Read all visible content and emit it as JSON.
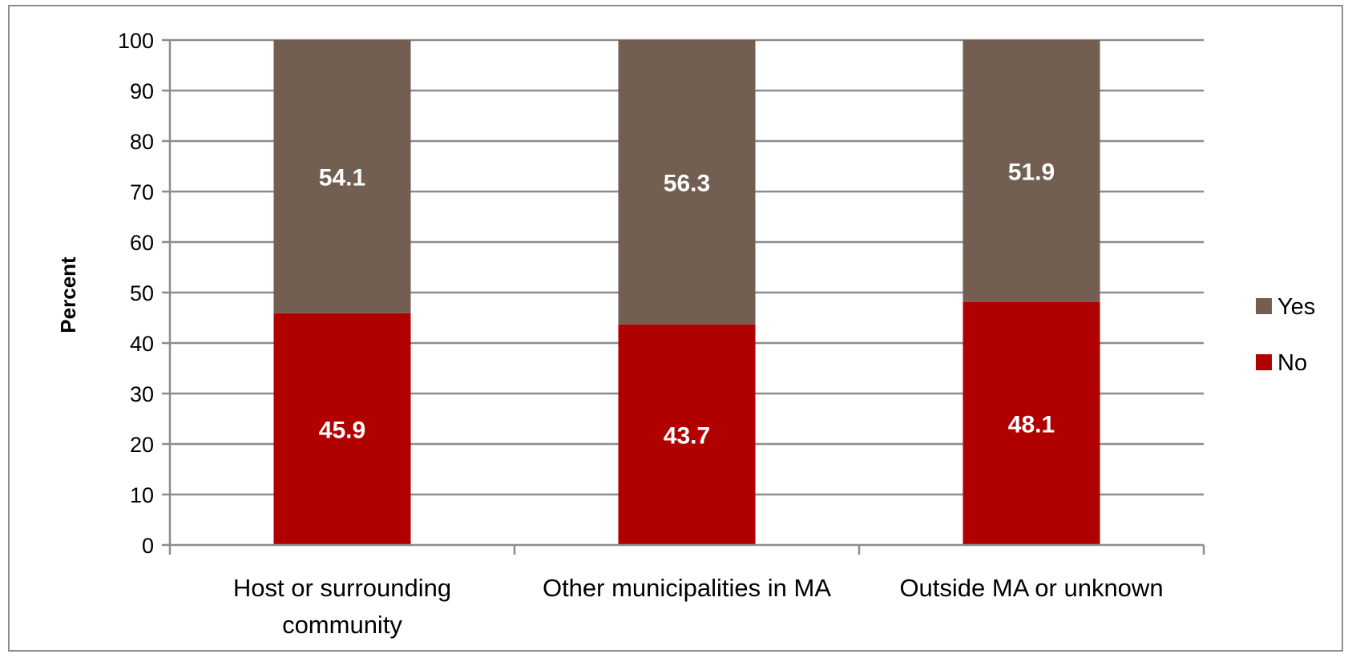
{
  "chart_data": {
    "type": "bar",
    "stacked": true,
    "categories": [
      [
        "Host or surrounding",
        "community"
      ],
      [
        "Other municipalities in MA"
      ],
      [
        "Outside MA or unknown"
      ]
    ],
    "series": [
      {
        "name": "No",
        "values": [
          45.9,
          43.7,
          48.1
        ],
        "color": "#b00000"
      },
      {
        "name": "Yes",
        "values": [
          54.1,
          56.3,
          51.9
        ],
        "color": "#735e52"
      }
    ],
    "ylabel": "Percent",
    "xlabel": "",
    "title": "",
    "ylim": [
      0,
      100
    ],
    "yticks": [
      0,
      10,
      20,
      30,
      40,
      50,
      60,
      70,
      80,
      90,
      100
    ],
    "grid": true,
    "legend_position": "right",
    "legend_order": [
      "Yes",
      "No"
    ]
  }
}
